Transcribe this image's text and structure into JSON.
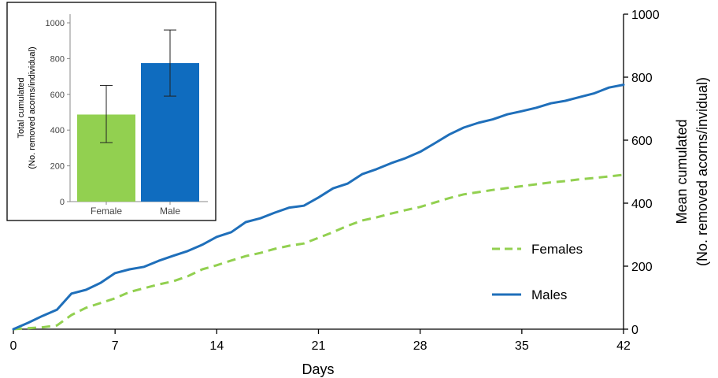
{
  "chart_data": [
    {
      "type": "line",
      "xlabel": "Days",
      "ylabel_line1": "Mean cumulated",
      "ylabel_line2": "(No. removed acorns/invidual)",
      "ylim": [
        0,
        1000
      ],
      "xlim": [
        0,
        42
      ],
      "xticks": [
        0,
        7,
        14,
        21,
        28,
        35,
        42
      ],
      "yticks": [
        0,
        200,
        400,
        600,
        800,
        1000
      ],
      "y_axis_side": "right",
      "legend_position": "right",
      "series": [
        {
          "name": "Males",
          "color": "#1f6fba",
          "style": "solid",
          "x": [
            0,
            1,
            2,
            3,
            4,
            5,
            6,
            7,
            8,
            9,
            10,
            11,
            12,
            13,
            14,
            15,
            16,
            17,
            18,
            19,
            20,
            21,
            22,
            23,
            24,
            25,
            26,
            27,
            28,
            29,
            30,
            31,
            32,
            33,
            34,
            35,
            36,
            37,
            38,
            39,
            40,
            41,
            42
          ],
          "y": [
            0,
            20,
            42,
            62,
            113,
            125,
            147,
            178,
            190,
            198,
            217,
            233,
            248,
            268,
            293,
            308,
            340,
            352,
            370,
            386,
            392,
            418,
            447,
            462,
            492,
            508,
            527,
            543,
            563,
            590,
            618,
            640,
            655,
            666,
            682,
            692,
            703,
            717,
            725,
            737,
            749,
            767,
            776
          ]
        },
        {
          "name": "Females",
          "color": "#92d050",
          "style": "dashed",
          "x": [
            0,
            1,
            2,
            3,
            4,
            5,
            6,
            7,
            8,
            9,
            10,
            11,
            12,
            13,
            14,
            15,
            16,
            17,
            18,
            19,
            20,
            21,
            22,
            23,
            24,
            25,
            26,
            27,
            28,
            29,
            30,
            31,
            32,
            33,
            34,
            35,
            36,
            37,
            38,
            39,
            40,
            41,
            42
          ],
          "y": [
            0,
            3,
            6,
            12,
            45,
            68,
            83,
            98,
            118,
            130,
            142,
            152,
            168,
            190,
            203,
            218,
            232,
            242,
            255,
            265,
            272,
            290,
            308,
            328,
            345,
            355,
            367,
            378,
            388,
            402,
            416,
            428,
            435,
            442,
            448,
            454,
            460,
            466,
            470,
            476,
            480,
            485,
            490
          ]
        }
      ]
    },
    {
      "type": "bar",
      "ylabel_line1": "Total cumulated",
      "ylabel_line2": "(No. removed acorns/individual)",
      "categories": [
        "Female",
        "Male"
      ],
      "values": [
        487,
        775
      ],
      "error_low": [
        330,
        590
      ],
      "error_high": [
        650,
        960
      ],
      "colors": [
        "#92d050",
        "#0f6cbf"
      ],
      "ylim": [
        0,
        1000
      ],
      "yticks": [
        0,
        200,
        400,
        600,
        800,
        1000
      ],
      "legend_position": "none",
      "grid": false
    }
  ]
}
